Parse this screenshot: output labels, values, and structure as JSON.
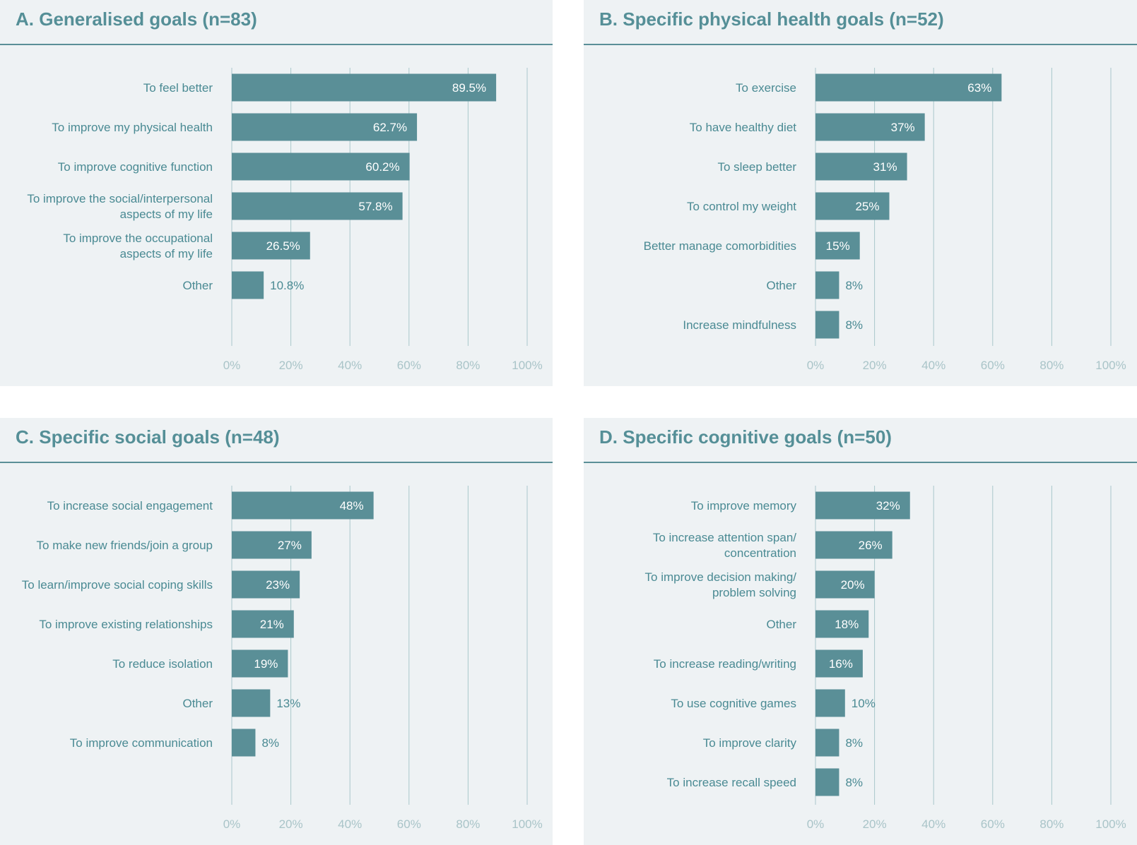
{
  "colors": {
    "bar": "#5a8f97",
    "grid": "#a9c7cb",
    "title": "#558f97",
    "panel_bg": "#eef2f4"
  },
  "chart_data": [
    {
      "type": "bar",
      "orientation": "horizontal",
      "title": "A. Generalised goals (n=83)",
      "categories": [
        "To feel better",
        "To improve my physical health",
        "To improve cognitive function",
        "To improve the social/interpersonal aspects of my life",
        "To improve the occupational aspects of my life",
        "Other"
      ],
      "category_lines": [
        [
          "To feel better"
        ],
        [
          "To improve my physical health"
        ],
        [
          "To improve cognitive function"
        ],
        [
          "To improve the social/interpersonal",
          "aspects of my life"
        ],
        [
          "To improve the occupational",
          "aspects of my life"
        ],
        [
          "Other"
        ]
      ],
      "values": [
        89.5,
        62.7,
        60.2,
        57.8,
        26.5,
        10.8
      ],
      "value_labels": [
        "89.5%",
        "62.7%",
        "60.2%",
        "57.8%",
        "26.5%",
        "10.8%"
      ],
      "xlim": [
        0,
        100
      ],
      "xticks": [
        "0%",
        "20%",
        "40%",
        "60%",
        "80%",
        "100%"
      ],
      "grid": true
    },
    {
      "type": "bar",
      "orientation": "horizontal",
      "title": "B. Specific physical health goals (n=52)",
      "categories": [
        "To exercise",
        "To have healthy diet",
        "To sleep better",
        "To control my weight",
        "Better manage comorbidities",
        "Other",
        "Increase mindfulness"
      ],
      "category_lines": [
        [
          "To exercise"
        ],
        [
          "To have healthy diet"
        ],
        [
          "To sleep better"
        ],
        [
          "To control my weight"
        ],
        [
          "Better manage comorbidities"
        ],
        [
          "Other"
        ],
        [
          "Increase mindfulness"
        ]
      ],
      "values": [
        63,
        37,
        31,
        25,
        15,
        8,
        8
      ],
      "value_labels": [
        "63%",
        "37%",
        "31%",
        "25%",
        "15%",
        "8%",
        "8%"
      ],
      "xlim": [
        0,
        100
      ],
      "xticks": [
        "0%",
        "20%",
        "40%",
        "60%",
        "80%",
        "100%"
      ],
      "grid": true
    },
    {
      "type": "bar",
      "orientation": "horizontal",
      "title": "C. Specific social goals (n=48)",
      "categories": [
        "To increase social engagement",
        "To make new friends/join a group",
        "To learn/improve social coping skills",
        "To improve existing relationships",
        "To reduce isolation",
        "Other",
        "To improve communication"
      ],
      "category_lines": [
        [
          "To increase social engagement"
        ],
        [
          "To make new friends/join a group"
        ],
        [
          "To learn/improve social coping skills"
        ],
        [
          "To improve existing relationships"
        ],
        [
          "To reduce isolation"
        ],
        [
          "Other"
        ],
        [
          "To improve communication"
        ]
      ],
      "values": [
        48,
        27,
        23,
        21,
        19,
        13,
        8
      ],
      "value_labels": [
        "48%",
        "27%",
        "23%",
        "21%",
        "19%",
        "13%",
        "8%"
      ],
      "xlim": [
        0,
        100
      ],
      "xticks": [
        "0%",
        "20%",
        "40%",
        "60%",
        "80%",
        "100%"
      ],
      "grid": true
    },
    {
      "type": "bar",
      "orientation": "horizontal",
      "title": "D. Specific cognitive goals (n=50)",
      "categories": [
        "To improve memory",
        "To increase attention span/ concentration",
        "To improve decision making/ problem solving",
        "Other",
        "To increase reading/writing",
        "To use cognitive games",
        "To improve clarity",
        "To increase recall speed"
      ],
      "category_lines": [
        [
          "To improve memory"
        ],
        [
          "To increase attention span/",
          "concentration"
        ],
        [
          "To improve decision making/",
          "problem solving"
        ],
        [
          "Other"
        ],
        [
          "To increase reading/writing"
        ],
        [
          "To use cognitive games"
        ],
        [
          "To improve clarity"
        ],
        [
          "To increase recall speed"
        ]
      ],
      "values": [
        32,
        26,
        20,
        18,
        16,
        10,
        8,
        8
      ],
      "value_labels": [
        "32%",
        "26%",
        "20%",
        "18%",
        "16%",
        "10%",
        "8%",
        "8%"
      ],
      "xlim": [
        0,
        100
      ],
      "xticks": [
        "0%",
        "20%",
        "40%",
        "60%",
        "80%",
        "100%"
      ],
      "grid": true
    }
  ]
}
